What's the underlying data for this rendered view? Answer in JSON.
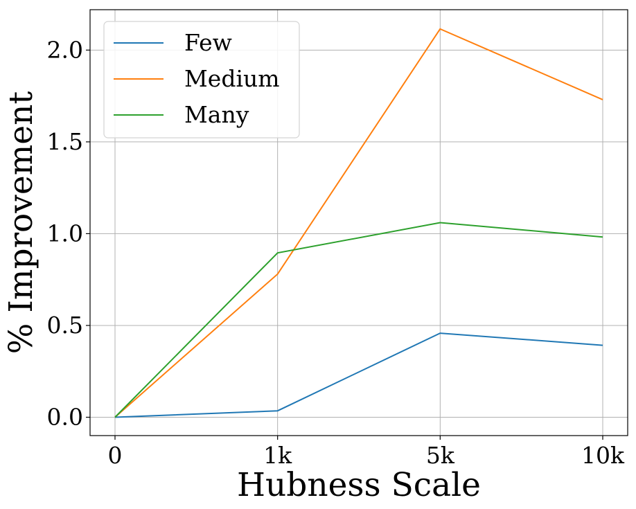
{
  "chart_data": {
    "type": "line",
    "title": "",
    "xlabel": "Hubness Scale",
    "ylabel": "% Improvement",
    "categories": [
      "0",
      "1k",
      "5k",
      "10k"
    ],
    "ylim": [
      -0.1,
      2.22
    ],
    "yticks": [
      "0.0",
      "0.5",
      "1.0",
      "1.5",
      "2.0"
    ],
    "grid": true,
    "legend_position": "top-left",
    "series": [
      {
        "name": "Few",
        "color": "#1f77b4",
        "values": [
          0.0,
          0.035,
          0.458,
          0.392
        ]
      },
      {
        "name": "Medium",
        "color": "#ff7f0e",
        "values": [
          0.0,
          0.78,
          2.115,
          1.73
        ]
      },
      {
        "name": "Many",
        "color": "#2ca02c",
        "values": [
          0.0,
          0.895,
          1.06,
          0.982
        ]
      }
    ]
  }
}
